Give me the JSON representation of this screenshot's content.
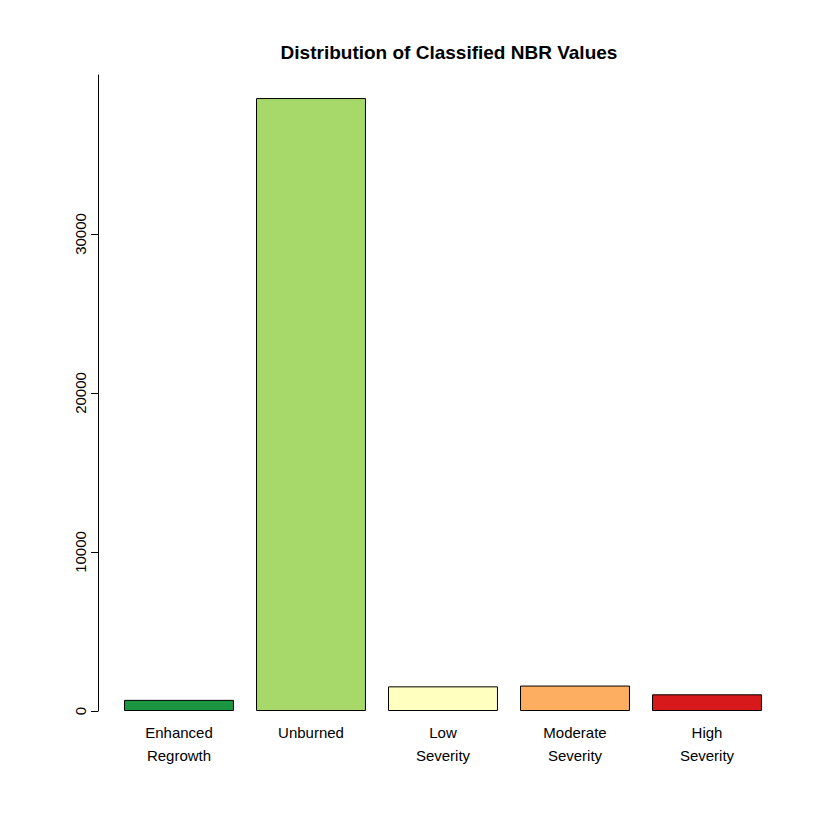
{
  "chart_data": {
    "type": "bar",
    "title": "Distribution of Classified NBR Values",
    "categories": [
      "Enhanced\nRegrowth",
      "Unburned",
      "Low\nSeverity",
      "Moderate\nSeverity",
      "High\nSeverity"
    ],
    "values": [
      700,
      38550,
      1550,
      1600,
      1050
    ],
    "colors": [
      "#1a9641",
      "#a6d96a",
      "#ffffbf",
      "#fdae61",
      "#d7191c"
    ],
    "ylim": [
      0,
      40000
    ],
    "yticks": [
      0,
      10000,
      20000,
      30000
    ],
    "grid": false
  }
}
